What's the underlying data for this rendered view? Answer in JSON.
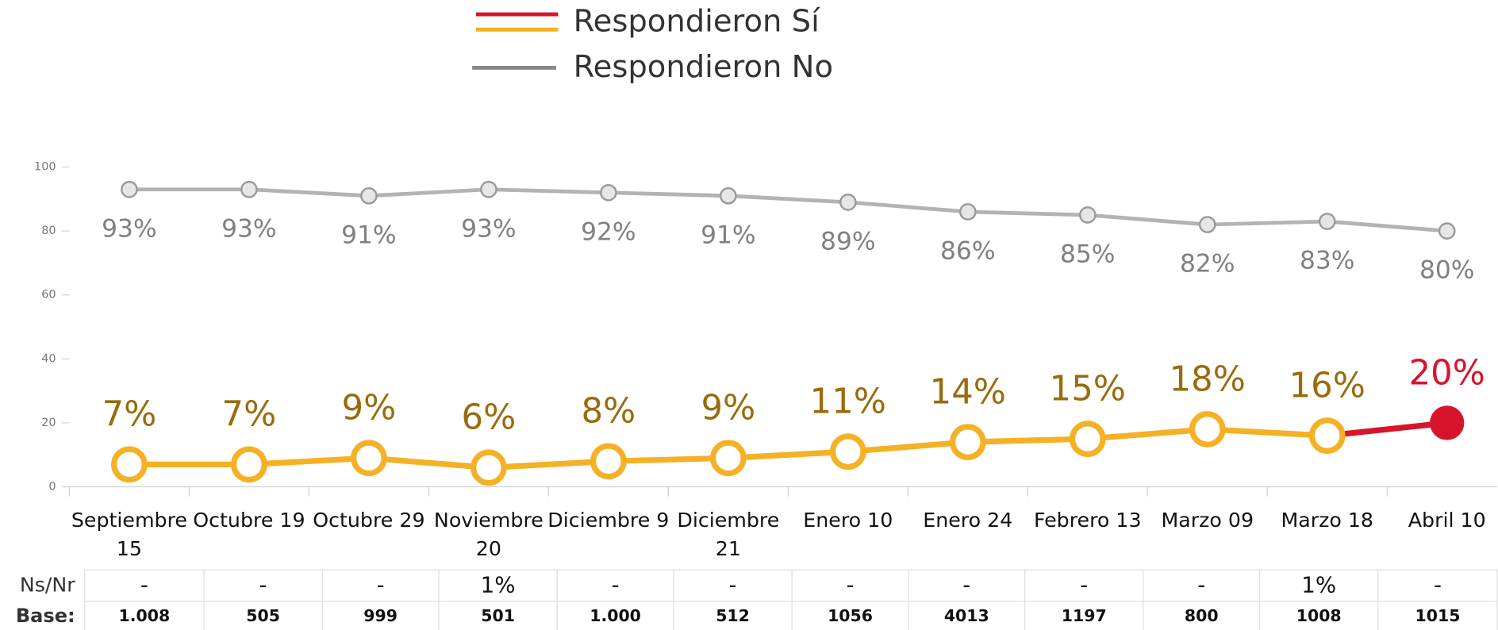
{
  "chart_data": {
    "type": "line",
    "categories": [
      "Septiembre 15",
      "Octubre 19",
      "Octubre 29",
      "Noviembre 20",
      "Diciembre 9",
      "Diciembre 21",
      "Enero 10",
      "Enero 24",
      "Febrero 13",
      "Marzo 09",
      "Marzo 18",
      "Abril 10"
    ],
    "series": [
      {
        "name": "Respondieron Sí",
        "color": "#f4b125",
        "highlight_color": "#d7142b",
        "values": [
          7,
          7,
          9,
          6,
          8,
          9,
          11,
          14,
          15,
          18,
          16,
          20
        ],
        "value_labels": [
          "7%",
          "7%",
          "9%",
          "6%",
          "8%",
          "9%",
          "11%",
          "14%",
          "15%",
          "18%",
          "16%",
          "20%"
        ]
      },
      {
        "name": "Respondieron No",
        "color": "#b3b3b3",
        "values": [
          93,
          93,
          91,
          93,
          92,
          91,
          89,
          86,
          85,
          82,
          83,
          80
        ],
        "value_labels": [
          "93%",
          "93%",
          "91%",
          "93%",
          "92%",
          "91%",
          "89%",
          "86%",
          "85%",
          "82%",
          "83%",
          "80%"
        ]
      }
    ],
    "ylim": [
      0,
      100
    ],
    "yticks": [
      0,
      20,
      40,
      60,
      80,
      100
    ],
    "grid": false
  },
  "table": {
    "rows": [
      {
        "label": "Ns/Nr",
        "cells": [
          "-",
          "-",
          "-",
          "1%",
          "-",
          "-",
          "-",
          "-",
          "-",
          "-",
          "1%",
          "-"
        ]
      },
      {
        "label": "Base:",
        "cells": [
          "1.008",
          "505",
          "999",
          "501",
          "1.000",
          "512",
          "1056",
          "4013",
          "1197",
          "800",
          "1008",
          "1015"
        ]
      }
    ]
  }
}
